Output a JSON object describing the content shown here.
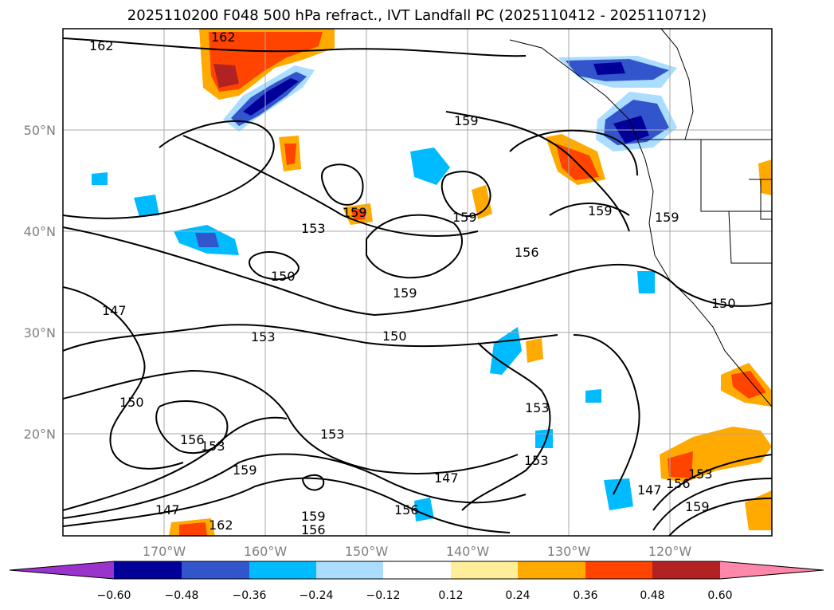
{
  "title": "2025110200 F048 500 hPa refract., IVT Landfall PC (2025110412 - 2025110712)",
  "map": {
    "latitude_labels": [
      "50°N",
      "40°N",
      "30°N",
      "20°N"
    ],
    "longitude_labels": [
      "170°W",
      "160°W",
      "150°W",
      "140°W",
      "130°W",
      "120°W"
    ],
    "contour_labels": [
      "162",
      "162",
      "159",
      "159",
      "153",
      "159",
      "159",
      "156",
      "150",
      "159",
      "147",
      "153",
      "150",
      "150",
      "150",
      "153",
      "156",
      "153",
      "153",
      "159",
      "153",
      "147",
      "147",
      "159",
      "156",
      "156",
      "162",
      "159",
      "147",
      "156",
      "153",
      "159"
    ],
    "colors": {
      "contour_line": "#000000",
      "grid": "#aaaaaa",
      "coast": "#000000"
    }
  },
  "colorbar": {
    "tick_labels": [
      "−0.60",
      "−0.48",
      "−0.36",
      "−0.24",
      "−0.12",
      "0.12",
      "0.24",
      "0.36",
      "0.48",
      "0.60"
    ],
    "colors": [
      "#9933cc",
      "#000099",
      "#3355cc",
      "#00bbff",
      "#aaddff",
      "#ffffff",
      "#ffee99",
      "#ffaa00",
      "#ff4400",
      "#b22222",
      "#ff88aa"
    ]
  }
}
